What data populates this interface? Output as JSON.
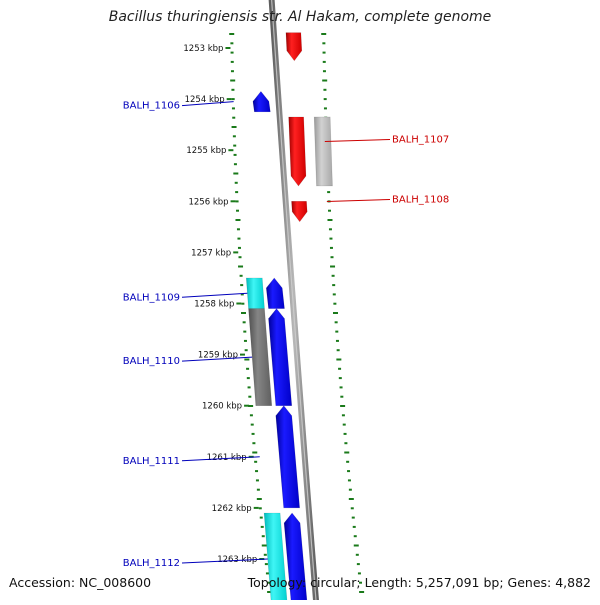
{
  "title": "Bacillus thuringiensis str. Al Hakam, complete genome",
  "footer": {
    "accession": "Accession: NC_008600",
    "summary": "Topology: circular; Length: 5,257,091 bp; Genes: 4,882"
  },
  "colors": {
    "backbone": "#8a8a8a",
    "forward_tick": "#1a7a1a",
    "label_blue": "#0000bb",
    "label_red": "#cc0000",
    "cds_blue": "#0000ee",
    "cds_red": "#ee0000",
    "feature_cyan": "#00e5e5",
    "feature_gray_dark": "#707070",
    "feature_gray_light": "#b4b4b4"
  },
  "scale": {
    "unit": "kbp",
    "ticks": [
      "1253 kbp",
      "1254 kbp",
      "1255 kbp",
      "1256 kbp",
      "1257 kbp",
      "1258 kbp",
      "1259 kbp",
      "1260 kbp",
      "1261 kbp",
      "1262 kbp",
      "1263 kbp"
    ]
  },
  "features": [
    {
      "id": "cds-top",
      "track": "rev",
      "color": "cds_red",
      "start_kbp": 1252.7,
      "end_kbp": 1253.25,
      "direction": "down"
    },
    {
      "id": "cds-1106",
      "track": "fwd",
      "color": "cds_blue",
      "start_kbp": 1253.85,
      "end_kbp": 1254.25,
      "direction": "up"
    },
    {
      "id": "cds-1107",
      "track": "rev",
      "color": "cds_red",
      "start_kbp": 1254.35,
      "end_kbp": 1255.7,
      "direction": "down"
    },
    {
      "id": "feat-1107-gray",
      "track": "rev2",
      "color": "feature_gray_light",
      "start_kbp": 1254.35,
      "end_kbp": 1255.7,
      "direction": "none"
    },
    {
      "id": "cds-1108",
      "track": "rev",
      "color": "cds_red",
      "start_kbp": 1256.0,
      "end_kbp": 1256.4,
      "direction": "down"
    },
    {
      "id": "cds-1109",
      "track": "fwd",
      "color": "cds_blue",
      "start_kbp": 1257.5,
      "end_kbp": 1258.1,
      "direction": "up"
    },
    {
      "id": "feat-1109-cyan",
      "track": "fwd2",
      "color": "feature_cyan",
      "start_kbp": 1257.5,
      "end_kbp": 1258.1,
      "direction": "none"
    },
    {
      "id": "cds-1110",
      "track": "fwd",
      "color": "cds_blue",
      "start_kbp": 1258.1,
      "end_kbp": 1260.0,
      "direction": "up"
    },
    {
      "id": "feat-1110-gray",
      "track": "fwd2",
      "color": "feature_gray_dark",
      "start_kbp": 1258.1,
      "end_kbp": 1260.0,
      "direction": "none"
    },
    {
      "id": "cds-1111",
      "track": "fwd",
      "color": "cds_blue",
      "start_kbp": 1260.0,
      "end_kbp": 1262.0,
      "direction": "up"
    },
    {
      "id": "cds-1112",
      "track": "fwd",
      "color": "cds_blue",
      "start_kbp": 1262.1,
      "end_kbp": 1263.9,
      "direction": "up"
    },
    {
      "id": "feat-1112-cyan",
      "track": "fwd2",
      "color": "feature_cyan",
      "start_kbp": 1262.1,
      "end_kbp": 1263.9,
      "direction": "none"
    }
  ],
  "labels": [
    {
      "text": "BALH_1106",
      "side": "left",
      "color": "label_blue",
      "feature": "cds-1106"
    },
    {
      "text": "BALH_1107",
      "side": "right",
      "color": "label_red",
      "feature": "cds-1107"
    },
    {
      "text": "BALH_1108",
      "side": "right",
      "color": "label_red",
      "feature": "cds-1108"
    },
    {
      "text": "BALH_1109",
      "side": "left",
      "color": "label_blue",
      "feature": "cds-1109"
    },
    {
      "text": "BALH_1110",
      "side": "left",
      "color": "label_blue",
      "feature": "cds-1110"
    },
    {
      "text": "BALH_1111",
      "side": "left",
      "color": "label_blue",
      "feature": "cds-1111"
    },
    {
      "text": "BALH_1112",
      "side": "left",
      "color": "label_blue",
      "feature": "cds-1112"
    }
  ]
}
